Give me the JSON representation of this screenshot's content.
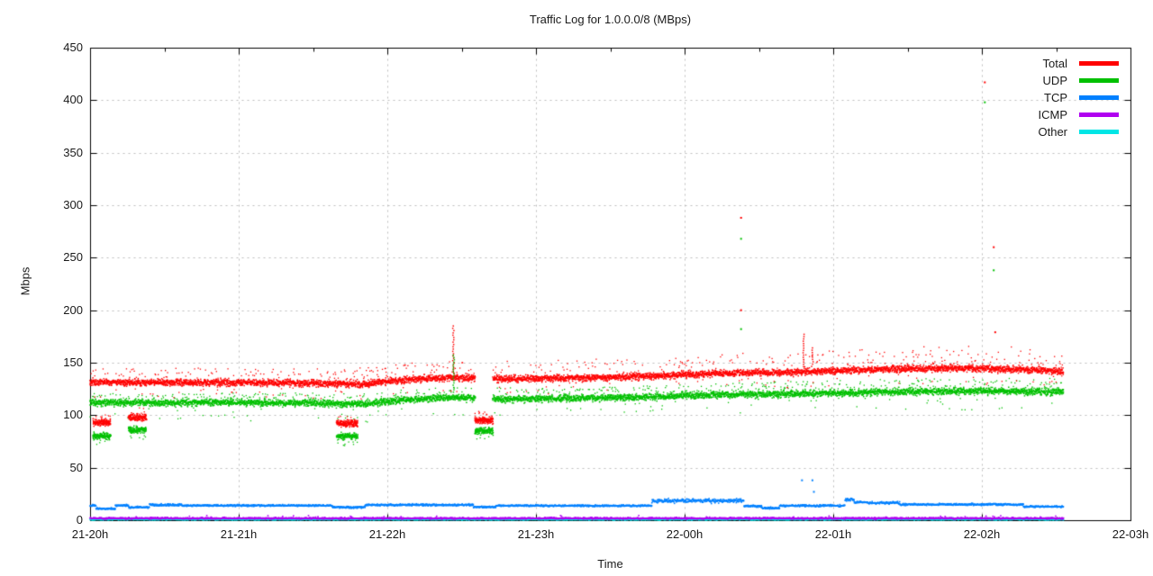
{
  "title": "Traffic Log for 1.0.0.0/8 (MBps)",
  "chart_data": {
    "type": "scatter",
    "title": "Traffic Log for 1.0.0.0/8 (MBps)",
    "xlabel": "Time",
    "ylabel": "Mbps",
    "ylim": [
      0,
      450
    ],
    "y_tick_step": 50,
    "y_ticks": [
      0,
      50,
      100,
      150,
      200,
      250,
      300,
      350,
      400,
      450
    ],
    "x_tick_labels": [
      "21-20h",
      "21-21h",
      "21-22h",
      "21-23h",
      "22-00h",
      "22-01h",
      "22-02h",
      "22-03h"
    ],
    "x_hours_span": 7,
    "data_end_hour": 6.55,
    "grid": true,
    "grid_color": "#bdbdbd",
    "border_color": "#000000",
    "legend_position": "top-right-inside",
    "legend": [
      {
        "name": "Total",
        "color": "#ff0000"
      },
      {
        "name": "UDP",
        "color": "#00c000"
      },
      {
        "name": "TCP",
        "color": "#0080ff"
      },
      {
        "name": "ICMP",
        "color": "#b000f0"
      },
      {
        "name": "Other",
        "color": "#00e6e6"
      }
    ],
    "series": {
      "total": {
        "kind": "band",
        "color": "#ff0000",
        "trend": [
          [
            0,
            131.5
          ],
          [
            0.5,
            131
          ],
          [
            1.0,
            131
          ],
          [
            1.5,
            130.5
          ],
          [
            1.85,
            129.5
          ],
          [
            2.0,
            132
          ],
          [
            2.15,
            134
          ],
          [
            2.45,
            136
          ],
          [
            2.75,
            134.5
          ],
          [
            3.1,
            135
          ],
          [
            3.5,
            136
          ],
          [
            3.9,
            138
          ],
          [
            4.2,
            140
          ],
          [
            4.6,
            140.5
          ],
          [
            5.0,
            142
          ],
          [
            5.4,
            144
          ],
          [
            5.8,
            145
          ],
          [
            6.1,
            144
          ],
          [
            6.35,
            143
          ],
          [
            6.55,
            141.5
          ]
        ],
        "core_spread": 3.2,
        "halo_above": 18,
        "halo_below": 11
      },
      "udp": {
        "kind": "band",
        "color": "#00c000",
        "trend": [
          [
            0,
            112
          ],
          [
            0.5,
            112
          ],
          [
            1.0,
            112
          ],
          [
            1.5,
            111.5
          ],
          [
            1.85,
            110.5
          ],
          [
            2.0,
            113
          ],
          [
            2.15,
            115
          ],
          [
            2.45,
            117
          ],
          [
            2.75,
            115.5
          ],
          [
            3.1,
            116
          ],
          [
            3.5,
            116.5
          ],
          [
            3.9,
            118
          ],
          [
            4.2,
            119.5
          ],
          [
            4.6,
            120
          ],
          [
            5.0,
            121
          ],
          [
            5.4,
            122
          ],
          [
            5.8,
            123
          ],
          [
            6.1,
            123
          ],
          [
            6.35,
            122.5
          ],
          [
            6.55,
            122
          ]
        ],
        "core_spread": 3.2,
        "halo_above": 9,
        "halo_below": 14
      },
      "tcp": {
        "kind": "dash-line",
        "color": "#0080ff",
        "segments": [
          [
            0,
            0.04,
            14,
            0.8
          ],
          [
            0.04,
            0.17,
            11,
            0.8
          ],
          [
            0.17,
            0.26,
            14,
            0.8
          ],
          [
            0.26,
            0.4,
            12.3,
            0.8
          ],
          [
            0.4,
            0.62,
            14.5,
            1.0
          ],
          [
            0.62,
            1.63,
            14,
            0.8
          ],
          [
            1.63,
            1.85,
            12.3,
            0.9
          ],
          [
            1.85,
            2.58,
            14.5,
            0.9
          ],
          [
            2.58,
            2.73,
            12.5,
            0.8
          ],
          [
            2.73,
            3.78,
            13.8,
            0.8
          ],
          [
            3.78,
            4.4,
            18.5,
            1.9
          ],
          [
            4.4,
            4.52,
            13.5,
            0.9
          ],
          [
            4.52,
            4.64,
            11.5,
            0.9
          ],
          [
            4.64,
            5.08,
            13.8,
            0.9
          ],
          [
            5.08,
            5.14,
            19.5,
            1.2
          ],
          [
            5.14,
            5.24,
            17,
            0.9
          ],
          [
            5.24,
            5.45,
            16.5,
            1.1
          ],
          [
            5.45,
            6.28,
            15,
            0.9
          ],
          [
            6.28,
            6.55,
            13,
            0.8
          ]
        ]
      },
      "icmp": {
        "kind": "dash-line",
        "color": "#b000f0",
        "segments": [
          [
            0,
            6.55,
            1.8,
            0.7
          ]
        ],
        "spike_prob": 0.02,
        "spike_to": 4.5
      },
      "other": {
        "kind": "dash-line",
        "color": "#00e6e6",
        "segments": [
          [
            0,
            6.55,
            0.7,
            0.5
          ]
        ],
        "spike_prob": 0.01,
        "spike_to": 2.2
      }
    },
    "dips": [
      {
        "t0": 0.02,
        "t1": 0.14,
        "total": 93,
        "udp": 80,
        "gap": false
      },
      {
        "t0": 0.26,
        "t1": 0.38,
        "total": 98,
        "udp": 86,
        "gap": false
      },
      {
        "t0": 1.66,
        "t1": 1.8,
        "total": 92,
        "udp": 80,
        "gap": false
      },
      {
        "t0": 2.59,
        "t1": 2.71,
        "total": 95,
        "udp": 85,
        "gap": true
      }
    ],
    "spikes": [
      {
        "t": 2.445,
        "total_to": 187,
        "udp_to": 158
      },
      {
        "t": 4.8,
        "total_to": 178,
        "udp_to": null
      },
      {
        "t": 4.86,
        "total_to": 165,
        "udp_to": null
      }
    ],
    "outliers": {
      "total": [
        [
          4.38,
          288
        ],
        [
          4.38,
          200
        ],
        [
          6.02,
          417
        ],
        [
          6.08,
          260
        ],
        [
          6.09,
          179
        ]
      ],
      "udp": [
        [
          4.38,
          268
        ],
        [
          4.38,
          182
        ],
        [
          6.02,
          398
        ],
        [
          6.08,
          238
        ]
      ],
      "tcp": [
        [
          4.79,
          38
        ],
        [
          4.86,
          38
        ],
        [
          4.87,
          27
        ]
      ]
    }
  }
}
